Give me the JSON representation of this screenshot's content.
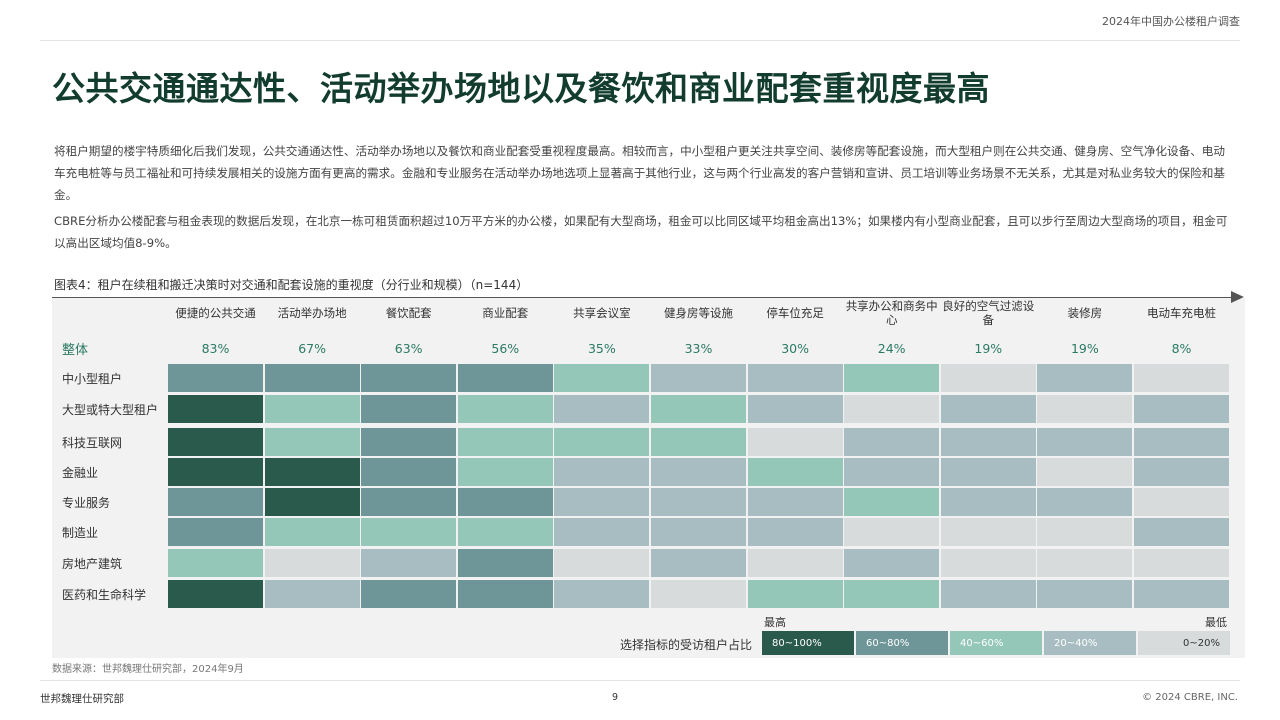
{
  "header": {
    "title": "2024年中国办公楼租户调查"
  },
  "page_title": "公共交通通达性、活动举办场地以及餐饮和商业配套重视度最高",
  "paragraphs": [
    "将租户期望的楼宇特质细化后我们发现，公共交通通达性、活动举办场地以及餐饮和商业配套受重视程度最高。相较而言，中小型租户更关注共享空间、装修房等配套设施，而大型租户则在公共交通、健身房、空气净化设备、电动车充电桩等与员工福祉和可持续发展相关的设施方面有更高的需求。金融和专业服务在活动举办场地选项上显著高于其他行业，这与两个行业高发的客户营销和宣讲、员工培训等业务场景不无关系，尤其是对私业务较大的保险和基金。",
    "CBRE分析办公楼配套与租金表现的数据后发现，在北京一栋可租赁面积超过10万平方米的办公楼，如果配有大型商场，租金可以比同区域平均租金高出13%；如果楼内有小型商业配套，且可以步行至周边大型商场的项目，租金可以高出区域均值8-9%。"
  ],
  "figure_caption": "图表4：租户在续租和搬迁决策时对交通和配套设施的重视度（分行业和规模）（n=144）",
  "chart_data": {
    "type": "heatmap",
    "title": "图表4：租户在续租和搬迁决策时对交通和配套设施的重视度（分行业和规模）（n=144）",
    "columns": [
      "便捷的公共交通",
      "活动举办场地",
      "餐饮配套",
      "商业配套",
      "共享会议室",
      "健身房等设施",
      "停车位充足",
      "共享办公和商务中心",
      "良好的空气过滤设备",
      "装修房",
      "电动车充电桩"
    ],
    "overall_label": "整体",
    "overall": [
      "83%",
      "67%",
      "63%",
      "56%",
      "35%",
      "33%",
      "30%",
      "24%",
      "19%",
      "19%",
      "8%"
    ],
    "rows": [
      {
        "label": "中小型租户",
        "levels": [
          3,
          3,
          3,
          3,
          2,
          1,
          1,
          2,
          0,
          1,
          0
        ]
      },
      {
        "label": "大型或特大型租户",
        "levels": [
          4,
          2,
          3,
          2,
          1,
          2,
          1,
          0,
          1,
          0,
          1
        ]
      },
      {
        "label": "科技互联网",
        "levels": [
          4,
          2,
          3,
          2,
          2,
          2,
          0,
          1,
          1,
          1,
          1
        ]
      },
      {
        "label": "金融业",
        "levels": [
          4,
          4,
          3,
          2,
          1,
          1,
          2,
          1,
          1,
          0,
          1
        ]
      },
      {
        "label": "专业服务",
        "levels": [
          3,
          4,
          3,
          3,
          1,
          1,
          1,
          2,
          1,
          1,
          0
        ]
      },
      {
        "label": "制造业",
        "levels": [
          3,
          2,
          2,
          2,
          1,
          1,
          1,
          0,
          0,
          0,
          1
        ]
      },
      {
        "label": "房地产建筑",
        "levels": [
          2,
          0,
          1,
          3,
          0,
          1,
          0,
          1,
          0,
          0,
          0
        ]
      },
      {
        "label": "医药和生命科学",
        "levels": [
          4,
          1,
          3,
          3,
          1,
          0,
          2,
          2,
          1,
          1,
          1
        ]
      }
    ],
    "legend": {
      "title": "选择指标的受访租户占比",
      "high_label": "最高",
      "low_label": "最低",
      "bins": [
        {
          "label": "80~100%",
          "color": "#2a5a4b"
        },
        {
          "label": "60~80%",
          "color": "#6e9598"
        },
        {
          "label": "40~60%",
          "color": "#94c7b7"
        },
        {
          "label": "20~40%",
          "color": "#a8bdc2"
        },
        {
          "label": "0~20%",
          "color": "#d7dbdc"
        }
      ]
    }
  },
  "source": "数据来源：世邦魏理仕研究部，2024年9月",
  "footer": {
    "left": "世邦魏理仕研究部",
    "page": "9",
    "right": "© 2024 CBRE, INC."
  }
}
